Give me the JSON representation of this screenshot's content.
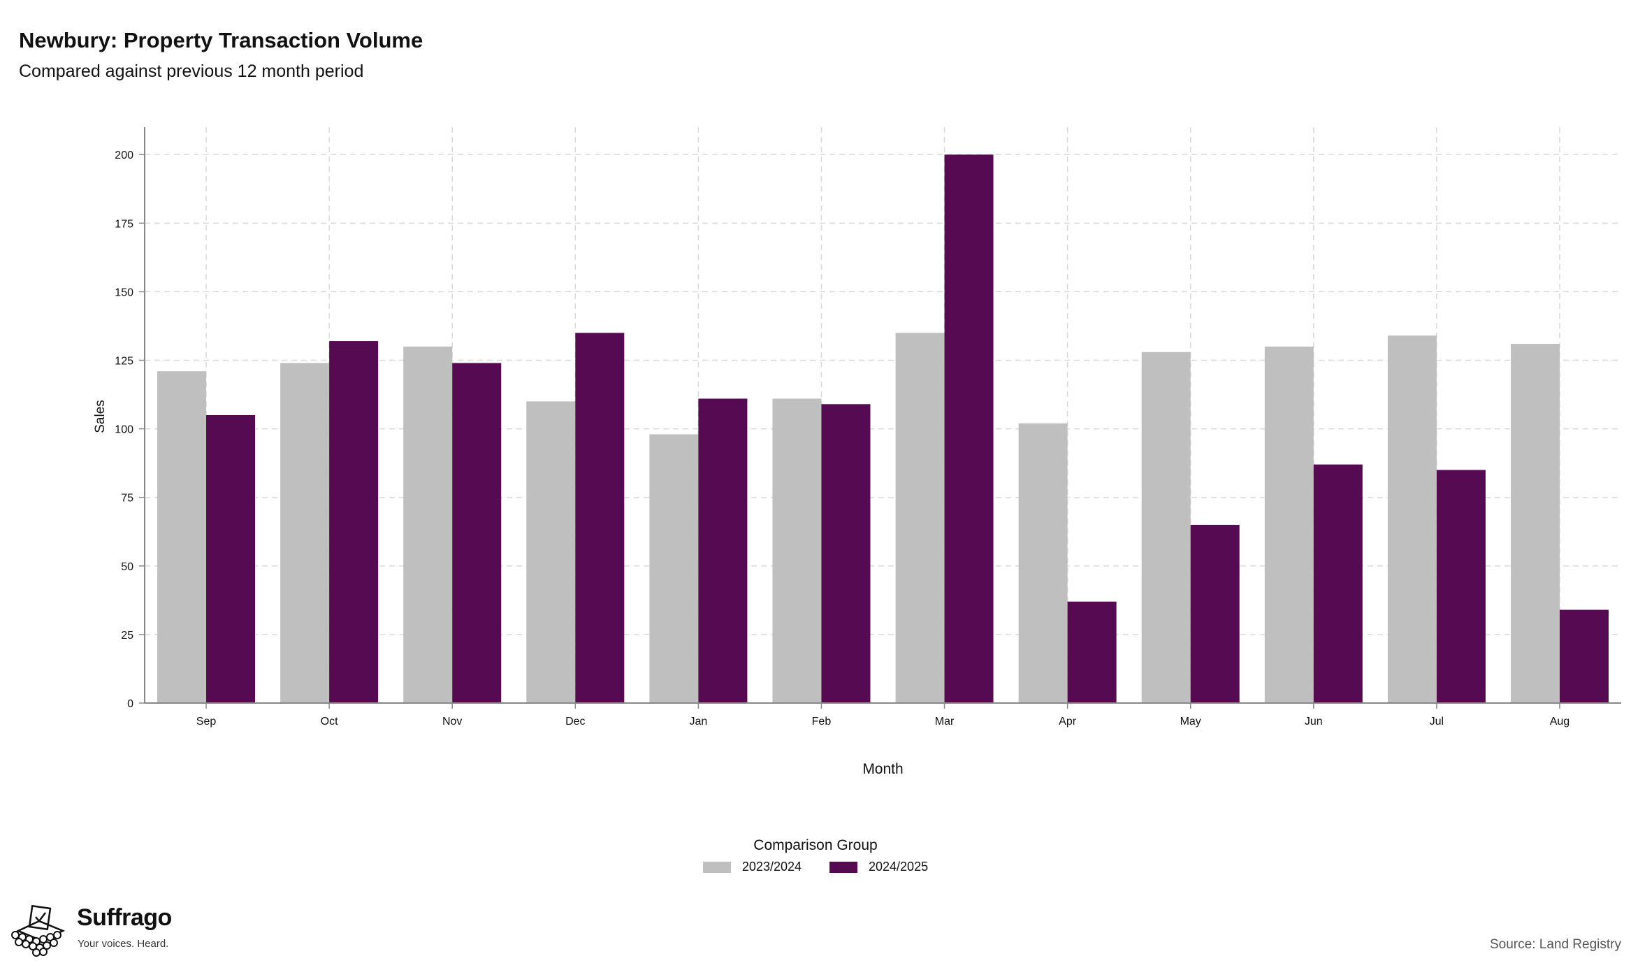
{
  "header": {
    "title": "Newbury: Property Transaction Volume",
    "subtitle": "Compared against previous 12 month period"
  },
  "legend": {
    "title": "Comparison Group"
  },
  "branding": {
    "name": "Suffrago",
    "tagline": "Your voices. Heard.",
    "icon": "ballot-box-icon"
  },
  "footer": {
    "source": "Source: Land Registry"
  },
  "colors": {
    "series_prev": "#bfbfbf",
    "series_curr": "#550a52",
    "grid": "#d9d9d9",
    "axis": "#888888"
  },
  "chart_data": {
    "type": "bar",
    "title": "Newbury: Property Transaction Volume",
    "subtitle": "Compared against previous 12 month period",
    "xlabel": "Month",
    "ylabel": "Sales",
    "ylim": [
      0,
      210
    ],
    "yticks": [
      0,
      25,
      50,
      75,
      100,
      125,
      150,
      175,
      200
    ],
    "grid": true,
    "legend_position": "bottom",
    "categories": [
      "Sep",
      "Oct",
      "Nov",
      "Dec",
      "Jan",
      "Feb",
      "Mar",
      "Apr",
      "May",
      "Jun",
      "Jul",
      "Aug"
    ],
    "series": [
      {
        "name": "2023/2024",
        "color": "#bfbfbf",
        "values": [
          121,
          124,
          130,
          110,
          98,
          111,
          135,
          102,
          128,
          130,
          134,
          131
        ]
      },
      {
        "name": "2024/2025",
        "color": "#550a52",
        "values": [
          105,
          132,
          124,
          135,
          111,
          109,
          200,
          37,
          65,
          87,
          85,
          34
        ]
      }
    ]
  }
}
